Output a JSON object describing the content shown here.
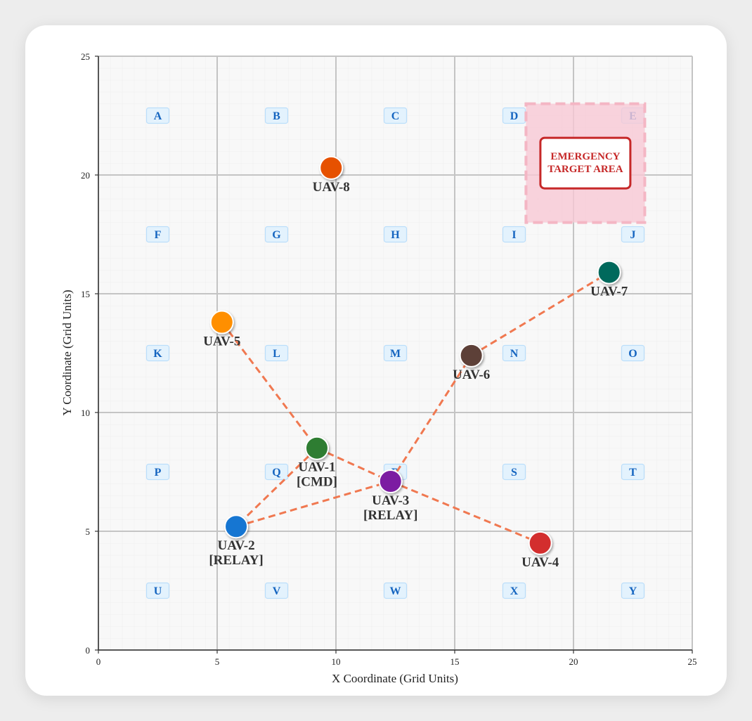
{
  "chart_data": {
    "type": "scatter",
    "title": "",
    "xlabel": "X Coordinate (Grid Units)",
    "ylabel": "Y Coordinate (Grid Units)",
    "xlim": [
      0,
      25
    ],
    "ylim": [
      0,
      25
    ],
    "x_ticks": [
      0,
      5,
      10,
      15,
      20,
      25
    ],
    "y_ticks": [
      0,
      5,
      10,
      15,
      20,
      25
    ],
    "grid": true,
    "zones": [
      {
        "label": "A",
        "x": 2.5,
        "y": 22.5
      },
      {
        "label": "B",
        "x": 7.5,
        "y": 22.5
      },
      {
        "label": "C",
        "x": 12.5,
        "y": 22.5
      },
      {
        "label": "D",
        "x": 17.5,
        "y": 22.5
      },
      {
        "label": "E",
        "x": 22.5,
        "y": 22.5
      },
      {
        "label": "F",
        "x": 2.5,
        "y": 17.5
      },
      {
        "label": "G",
        "x": 7.5,
        "y": 17.5
      },
      {
        "label": "H",
        "x": 12.5,
        "y": 17.5
      },
      {
        "label": "I",
        "x": 17.5,
        "y": 17.5
      },
      {
        "label": "J",
        "x": 22.5,
        "y": 17.5
      },
      {
        "label": "K",
        "x": 2.5,
        "y": 12.5
      },
      {
        "label": "L",
        "x": 7.5,
        "y": 12.5
      },
      {
        "label": "M",
        "x": 12.5,
        "y": 12.5
      },
      {
        "label": "N",
        "x": 17.5,
        "y": 12.5
      },
      {
        "label": "O",
        "x": 22.5,
        "y": 12.5
      },
      {
        "label": "P",
        "x": 2.5,
        "y": 7.5
      },
      {
        "label": "Q",
        "x": 7.5,
        "y": 7.5
      },
      {
        "label": "R",
        "x": 12.5,
        "y": 7.5
      },
      {
        "label": "S",
        "x": 17.5,
        "y": 7.5
      },
      {
        "label": "T",
        "x": 22.5,
        "y": 7.5
      },
      {
        "label": "U",
        "x": 2.5,
        "y": 2.5
      },
      {
        "label": "V",
        "x": 7.5,
        "y": 2.5
      },
      {
        "label": "W",
        "x": 12.5,
        "y": 2.5
      },
      {
        "label": "X",
        "x": 17.5,
        "y": 2.5
      },
      {
        "label": "Y",
        "x": 22.5,
        "y": 2.5
      }
    ],
    "target_area": {
      "label_lines": [
        "EMERGENCY",
        "TARGET AREA"
      ],
      "x_range": [
        18,
        23
      ],
      "y_range": [
        18,
        23
      ],
      "color": "#f8c8d4",
      "border_color": "#c62828"
    },
    "points": [
      {
        "id": "uav-1",
        "label_lines": [
          "UAV-1",
          "[CMD]"
        ],
        "x": 9.2,
        "y": 8.5,
        "color": "#2e7d32"
      },
      {
        "id": "uav-2",
        "label_lines": [
          "UAV-2",
          "[RELAY]"
        ],
        "x": 5.8,
        "y": 5.2,
        "color": "#1976d2"
      },
      {
        "id": "uav-3",
        "label_lines": [
          "UAV-3",
          "[RELAY]"
        ],
        "x": 12.3,
        "y": 7.1,
        "color": "#7b1fa2"
      },
      {
        "id": "uav-4",
        "label_lines": [
          "UAV-4"
        ],
        "x": 18.6,
        "y": 4.5,
        "color": "#d32f2f"
      },
      {
        "id": "uav-5",
        "label_lines": [
          "UAV-5"
        ],
        "x": 5.2,
        "y": 13.8,
        "color": "#ff8f00"
      },
      {
        "id": "uav-6",
        "label_lines": [
          "UAV-6"
        ],
        "x": 15.7,
        "y": 12.4,
        "color": "#5d4037"
      },
      {
        "id": "uav-7",
        "label_lines": [
          "UAV-7"
        ],
        "x": 21.5,
        "y": 15.9,
        "color": "#00695c"
      },
      {
        "id": "uav-8",
        "label_lines": [
          "UAV-8"
        ],
        "x": 9.8,
        "y": 20.3,
        "color": "#e65100"
      }
    ],
    "links": [
      [
        "uav-5",
        "uav-1"
      ],
      [
        "uav-1",
        "uav-2"
      ],
      [
        "uav-1",
        "uav-3"
      ],
      [
        "uav-2",
        "uav-3"
      ],
      [
        "uav-3",
        "uav-4"
      ],
      [
        "uav-3",
        "uav-6"
      ],
      [
        "uav-6",
        "uav-7"
      ]
    ],
    "link_color": "#f07850"
  }
}
